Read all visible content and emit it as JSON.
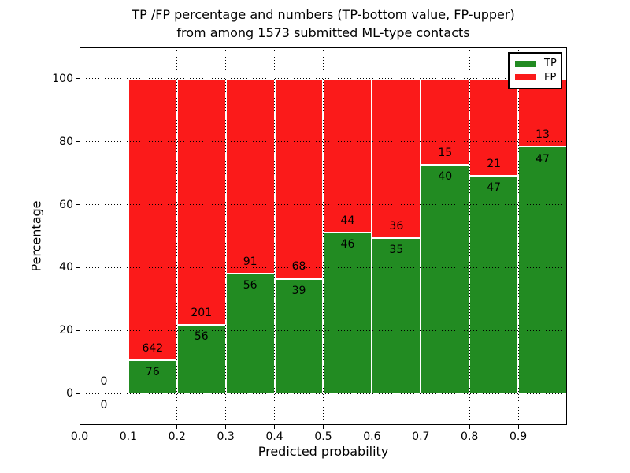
{
  "chart_data": {
    "type": "bar",
    "stacked": true,
    "title_lines": [
      "TP /FP percentage and numbers (TP-bottom value, FP-upper)",
      "from among 1573 submitted ML-type contacts"
    ],
    "xlabel": "Predicted probability",
    "ylabel": "Percentage",
    "xlim": [
      0,
      1
    ],
    "ylim": [
      -10,
      110
    ],
    "grid": "dotted",
    "total_contacts": 1573,
    "colors": {
      "tp": "#228b22",
      "fp": "#fb1a1a",
      "bar_edge": "#ffffff"
    },
    "x_ticks": [
      {
        "value": 0.0,
        "label": "0.0"
      },
      {
        "value": 0.1,
        "label": "0.1"
      },
      {
        "value": 0.2,
        "label": "0.2"
      },
      {
        "value": 0.3,
        "label": "0.3"
      },
      {
        "value": 0.4,
        "label": "0.4"
      },
      {
        "value": 0.5,
        "label": "0.5"
      },
      {
        "value": 0.6,
        "label": "0.6"
      },
      {
        "value": 0.7,
        "label": "0.7"
      },
      {
        "value": 0.8,
        "label": "0.8"
      },
      {
        "value": 0.9,
        "label": "0.9"
      }
    ],
    "y_ticks": [
      {
        "value": 0,
        "label": "0"
      },
      {
        "value": 20,
        "label": "20"
      },
      {
        "value": 40,
        "label": "40"
      },
      {
        "value": 60,
        "label": "60"
      },
      {
        "value": 80,
        "label": "80"
      },
      {
        "value": 100,
        "label": "100"
      }
    ],
    "bins": [
      {
        "range": [
          0.0,
          0.1
        ],
        "tp": 0,
        "fp": 0,
        "tp_pct": null
      },
      {
        "range": [
          0.1,
          0.2
        ],
        "tp": 76,
        "fp": 642,
        "tp_pct": 10.6
      },
      {
        "range": [
          0.2,
          0.3
        ],
        "tp": 56,
        "fp": 201,
        "tp_pct": 21.8
      },
      {
        "range": [
          0.3,
          0.4
        ],
        "tp": 56,
        "fp": 91,
        "tp_pct": 38.1
      },
      {
        "range": [
          0.4,
          0.5
        ],
        "tp": 39,
        "fp": 68,
        "tp_pct": 36.4
      },
      {
        "range": [
          0.5,
          0.6
        ],
        "tp": 46,
        "fp": 44,
        "tp_pct": 51.1
      },
      {
        "range": [
          0.6,
          0.7
        ],
        "tp": 35,
        "fp": 36,
        "tp_pct": 49.3
      },
      {
        "range": [
          0.7,
          0.8
        ],
        "tp": 40,
        "fp": 15,
        "tp_pct": 72.7
      },
      {
        "range": [
          0.8,
          0.9
        ],
        "tp": 47,
        "fp": 21,
        "tp_pct": 69.1
      },
      {
        "range": [
          0.9,
          1.0
        ],
        "tp": 47,
        "fp": 13,
        "tp_pct": 78.3
      }
    ],
    "legend": {
      "position": "upper right",
      "entries": [
        {
          "label": "TP",
          "color": "#228b22"
        },
        {
          "label": "FP",
          "color": "#fb1a1a"
        }
      ]
    }
  }
}
